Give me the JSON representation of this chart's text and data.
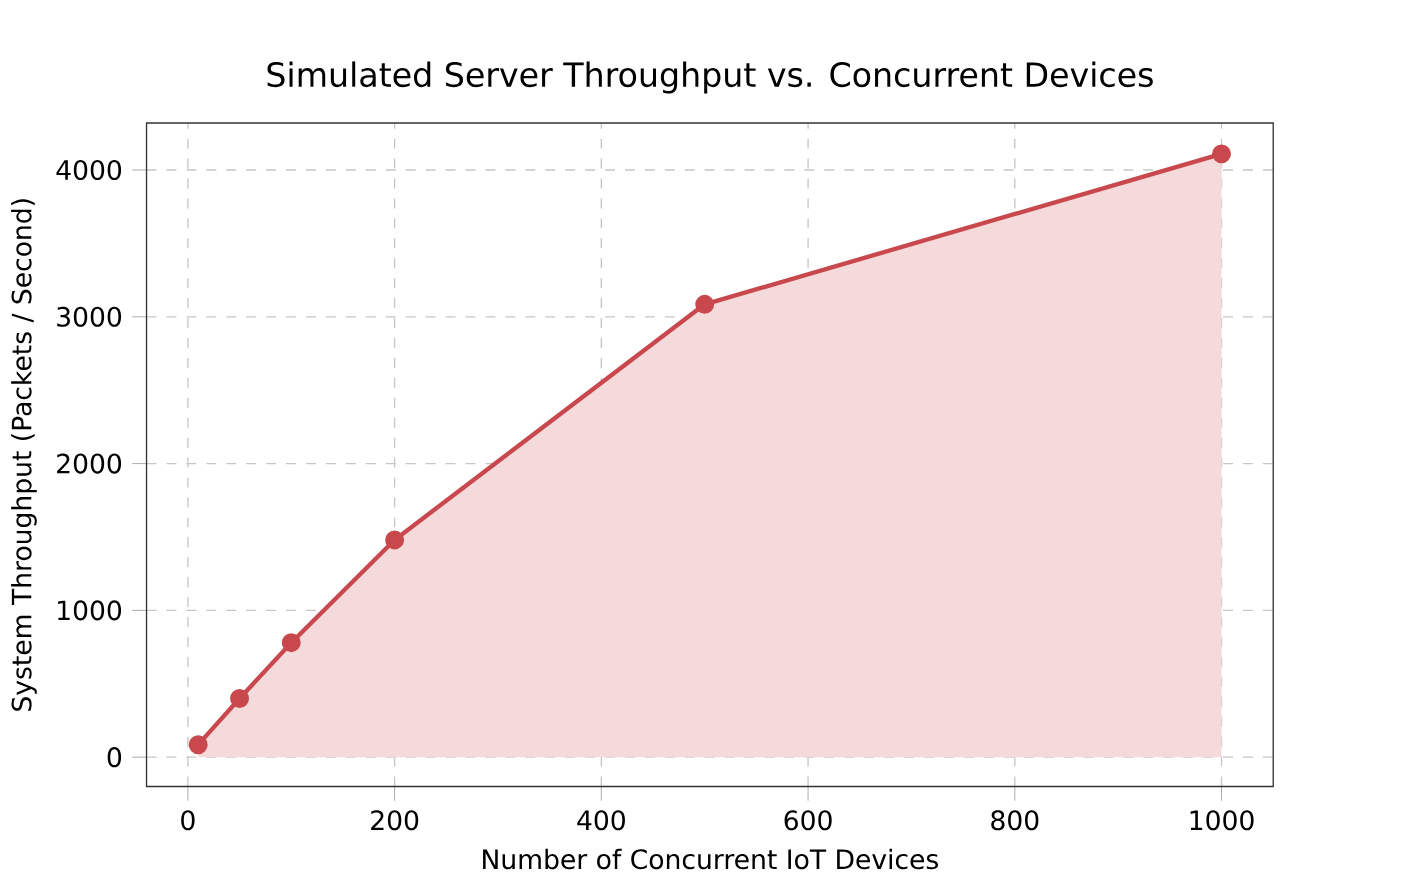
{
  "chart_data": {
    "type": "area",
    "title": "Simulated Server Throughput vs. Concurrent Devices",
    "xlabel": "Number of Concurrent IoT Devices",
    "ylabel": "System Throughput (Packets / Second)",
    "x": [
      10,
      50,
      100,
      200,
      500,
      1000
    ],
    "series": [
      {
        "color": "#c8484d",
        "values": [
          85,
          400,
          780,
          1480,
          3085,
          4110
        ]
      }
    ],
    "xlim": [
      -40,
      1050
    ],
    "ylim": [
      -200,
      4320
    ],
    "xticks": [
      0,
      200,
      400,
      600,
      800,
      1000
    ],
    "yticks": [
      0,
      1000,
      2000,
      3000,
      4000
    ],
    "grid": true,
    "marker": "circle",
    "line_style": "solid"
  }
}
